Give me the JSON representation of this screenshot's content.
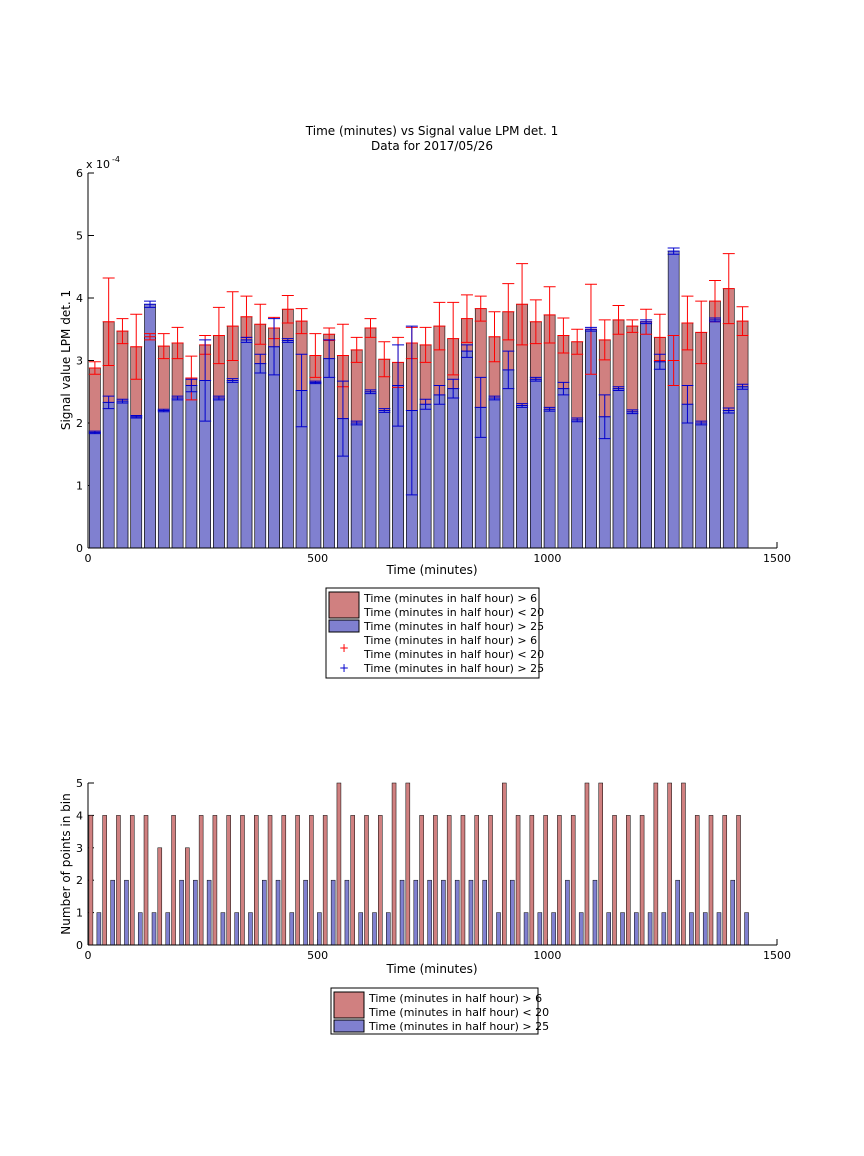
{
  "chart_data": [
    {
      "type": "bar",
      "title": "Time (minutes) vs Signal value LPM det. 1",
      "subtitle": "Data for 2017/05/26",
      "xlabel": "Time (minutes)",
      "ylabel": "Signal value LPM det. 1",
      "xlim": [
        0,
        1500
      ],
      "ylim": [
        0,
        6
      ],
      "y_exponent_label": "x 10",
      "y_exponent_power": "-4",
      "xticks": [
        "0",
        "500",
        "1000",
        "1500"
      ],
      "yticks": [
        "0",
        "1",
        "2",
        "3",
        "4",
        "5",
        "6"
      ],
      "x": [
        15,
        45,
        75,
        105,
        135,
        165,
        195,
        225,
        255,
        285,
        315,
        345,
        375,
        405,
        435,
        465,
        495,
        525,
        555,
        585,
        615,
        645,
        675,
        705,
        735,
        765,
        795,
        825,
        855,
        885,
        915,
        945,
        975,
        1005,
        1035,
        1065,
        1095,
        1125,
        1155,
        1185,
        1215,
        1245,
        1275,
        1305,
        1335,
        1365,
        1395,
        1425
      ],
      "series": [
        {
          "name": "Time (minutes in half hour) > 6 Time (minutes in half hour) < 20",
          "color": "#d08080",
          "values": [
            2.88,
            3.62,
            3.47,
            3.22,
            3.38,
            3.23,
            3.28,
            2.72,
            3.25,
            3.4,
            3.55,
            3.7,
            3.58,
            3.52,
            3.82,
            3.63,
            3.08,
            3.42,
            3.08,
            3.17,
            3.52,
            3.02,
            2.97,
            3.28,
            3.25,
            3.55,
            3.35,
            3.67,
            3.83,
            3.38,
            3.78,
            3.9,
            3.62,
            3.73,
            3.4,
            3.3,
            3.5,
            3.33,
            3.65,
            3.55,
            3.62,
            3.37,
            3.0,
            3.6,
            3.45,
            3.95,
            4.15,
            3.63
          ],
          "err": [
            0.1,
            0.7,
            0.2,
            0.52,
            0.05,
            0.2,
            0.25,
            0.35,
            0.15,
            0.45,
            0.55,
            0.33,
            0.32,
            0.17,
            0.22,
            0.2,
            0.35,
            0.1,
            0.5,
            0.2,
            0.15,
            0.28,
            0.4,
            0.25,
            0.28,
            0.38,
            0.58,
            0.38,
            0.2,
            0.4,
            0.45,
            0.65,
            0.35,
            0.45,
            0.28,
            0.2,
            0.72,
            0.32,
            0.23,
            0.1,
            0.2,
            0.37,
            0.4,
            0.43,
            0.5,
            0.33,
            0.56,
            0.23
          ]
        },
        {
          "name": "Time (minutes in half hour) > 25",
          "color": "#8080d0",
          "values": [
            1.85,
            2.33,
            2.35,
            2.1,
            3.9,
            2.2,
            2.4,
            2.6,
            2.68,
            2.4,
            2.68,
            3.33,
            2.95,
            3.22,
            3.32,
            2.52,
            2.65,
            3.03,
            2.07,
            2.0,
            2.5,
            2.2,
            2.6,
            2.2,
            2.3,
            2.45,
            2.55,
            3.15,
            2.25,
            2.4,
            2.85,
            2.28,
            2.7,
            2.22,
            2.55,
            2.05,
            3.5,
            2.1,
            2.55,
            2.18,
            3.62,
            2.98,
            4.75,
            2.3,
            2.0,
            3.65,
            2.2,
            2.58
          ],
          "err": [
            0.02,
            0.1,
            0.03,
            0.02,
            0.05,
            0.02,
            0.03,
            0.1,
            0.65,
            0.03,
            0.03,
            0.04,
            0.15,
            0.45,
            0.03,
            0.58,
            0.02,
            0.3,
            0.6,
            0.03,
            0.03,
            0.03,
            0.65,
            1.35,
            0.08,
            0.15,
            0.15,
            0.1,
            0.48,
            0.03,
            0.3,
            0.03,
            0.03,
            0.03,
            0.1,
            0.03,
            0.03,
            0.35,
            0.03,
            0.03,
            0.03,
            0.12,
            0.05,
            0.3,
            0.03,
            0.03,
            0.04,
            0.04
          ]
        }
      ],
      "legend": {
        "location": "below",
        "entries": [
          {
            "kind": "patch",
            "color": "#d08080",
            "line1": "Time (minutes in half hour) > 6",
            "line2": "Time (minutes in half hour) < 20"
          },
          {
            "kind": "patch",
            "color": "#8080d0",
            "line1": "Time (minutes in half hour) > 25"
          },
          {
            "kind": "marker",
            "color": "#ff0000",
            "line1": "Time (minutes in half hour) > 6",
            "line2": "Time (minutes in half hour) < 20"
          },
          {
            "kind": "marker",
            "color": "#0000cc",
            "line1": "Time (minutes in half hour) > 25"
          }
        ]
      }
    },
    {
      "type": "bar",
      "xlabel": "Time (minutes)",
      "ylabel": "Number of points in bin",
      "xlim": [
        0,
        1500
      ],
      "ylim": [
        0,
        5
      ],
      "xticks": [
        "0",
        "500",
        "1000",
        "1500"
      ],
      "yticks": [
        "0",
        "1",
        "2",
        "3",
        "4",
        "5"
      ],
      "x": [
        15,
        45,
        75,
        105,
        135,
        165,
        195,
        225,
        255,
        285,
        315,
        345,
        375,
        405,
        435,
        465,
        495,
        525,
        555,
        585,
        615,
        645,
        675,
        705,
        735,
        765,
        795,
        825,
        855,
        885,
        915,
        945,
        975,
        1005,
        1035,
        1065,
        1095,
        1125,
        1155,
        1185,
        1215,
        1245,
        1275,
        1305,
        1335,
        1365,
        1395,
        1425
      ],
      "series": [
        {
          "name": "Time (minutes in half hour) > 6 Time (minutes in half hour) < 20",
          "color": "#d08080",
          "values": [
            4,
            4,
            4,
            4,
            4,
            3,
            4,
            3,
            4,
            4,
            4,
            4,
            4,
            4,
            4,
            4,
            4,
            4,
            5,
            4,
            4,
            4,
            5,
            5,
            4,
            4,
            4,
            4,
            4,
            4,
            5,
            4,
            4,
            4,
            4,
            4,
            5,
            5,
            4,
            4,
            4,
            5,
            5,
            5,
            4,
            4,
            4,
            4
          ]
        },
        {
          "name": "Time (minutes in half hour) > 25",
          "color": "#8080d0",
          "values": [
            1,
            2,
            2,
            1,
            1,
            1,
            2,
            2,
            2,
            1,
            1,
            1,
            2,
            2,
            1,
            2,
            1,
            2,
            2,
            1,
            1,
            1,
            2,
            2,
            2,
            2,
            2,
            2,
            2,
            1,
            2,
            1,
            1,
            1,
            2,
            1,
            2,
            1,
            1,
            1,
            1,
            1,
            2,
            1,
            1,
            1,
            2,
            1
          ]
        }
      ],
      "legend": {
        "location": "below",
        "entries": [
          {
            "kind": "patch",
            "color": "#d08080",
            "line1": "Time (minutes in half hour) > 6",
            "line2": "Time (minutes in half hour) < 20"
          },
          {
            "kind": "patch",
            "color": "#8080d0",
            "line1": "Time (minutes in half hour) > 25"
          }
        ]
      }
    }
  ]
}
